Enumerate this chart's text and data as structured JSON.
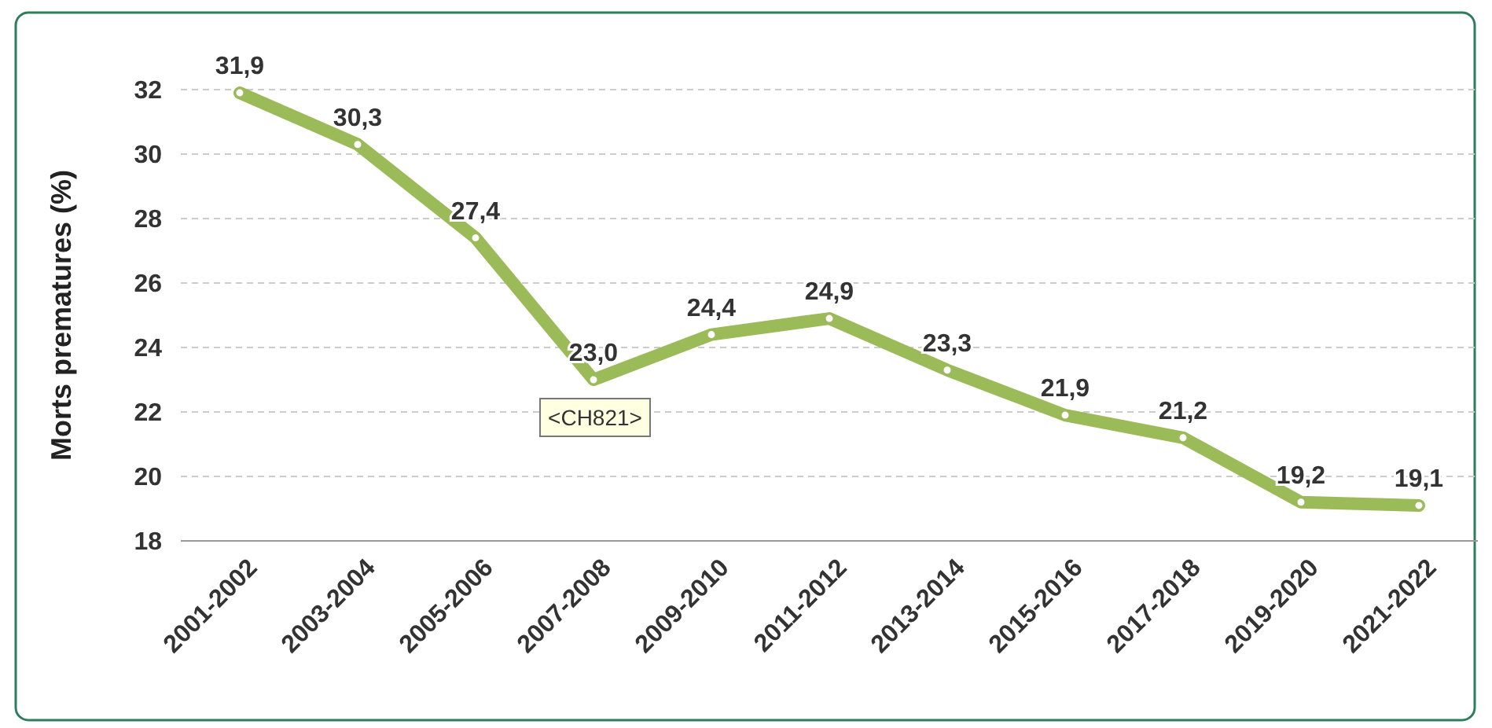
{
  "chart_data": {
    "type": "line",
    "ylabel": "Morts prematures (%)",
    "categories": [
      "2001-2002",
      "2003-2004",
      "2005-2006",
      "2007-2008",
      "2009-2010",
      "2011-2012",
      "2013-2014",
      "2015-2016",
      "2017-2018",
      "2019-2020",
      "2021-2022"
    ],
    "series": [
      {
        "color": "#9bbb59",
        "values": [
          31.9,
          30.3,
          27.4,
          23.0,
          24.4,
          24.9,
          23.3,
          21.9,
          21.2,
          19.2,
          19.1
        ],
        "value_labels": [
          "31,9",
          "30,3",
          "27,4",
          "23,0",
          "24,4",
          "24,9",
          "23,3",
          "21,9",
          "21,2",
          "19,2",
          "19,1"
        ]
      }
    ],
    "ylim": [
      18,
      32
    ],
    "yticks": [
      18,
      20,
      22,
      24,
      26,
      28,
      30,
      32
    ],
    "grid": "y",
    "marker": "circle",
    "line_style": "solid",
    "annotations": [
      {
        "text": "<CH821>",
        "x": "2007-2008",
        "y": 23.0
      }
    ]
  }
}
